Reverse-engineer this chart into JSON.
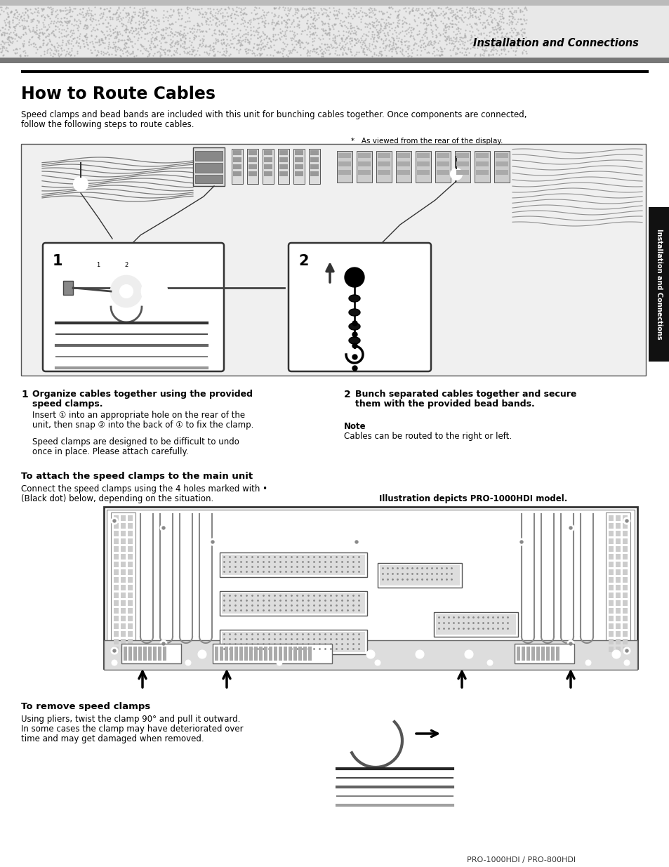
{
  "page_bg": "#ffffff",
  "header_text": "Installation and Connections",
  "title": "How to Route Cables",
  "intro_line1": "Speed clamps and bead bands are included with this unit for bunching cables together. Once components are connected,",
  "intro_line2": "follow the following steps to route cables.",
  "asterisk_note": "*   As viewed from the rear of the display.",
  "step1_bold_line1": "Organize cables together using the provided",
  "step1_bold_line2": "speed clamps.",
  "step1_text1": "Insert ① into an appropriate hole on the rear of the",
  "step1_text2": "unit, then snap ② into the back of ① to fix the clamp.",
  "step1_text3": "",
  "step1_text4": "Speed clamps are designed to be difficult to undo",
  "step1_text5": "once in place. Please attach carefully.",
  "step2_bold_line1": "Bunch separated cables together and secure",
  "step2_bold_line2": "them with the provided bead bands.",
  "note_bold": "Note",
  "note_text": "Cables can be routed to the right or left.",
  "attach_title": "To attach the speed clamps to the main unit",
  "attach_line1": "Connect the speed clamps using the 4 holes marked with •",
  "attach_line2": "(Black dot) below, depending on the situation.",
  "illus_caption": "Illustration depicts PRO-1000HDI model.",
  "remove_title": "To remove speed clamps",
  "remove_line1": "Using pliers, twist the clamp 90° and pull it outward.",
  "remove_line2": "In some cases the clamp may have deteriorated over",
  "remove_line3": "time and may get damaged when removed.",
  "footer_text": "PRO-1000HDI / PRO-800HDI",
  "sidebar_text": "Installation and Connections"
}
